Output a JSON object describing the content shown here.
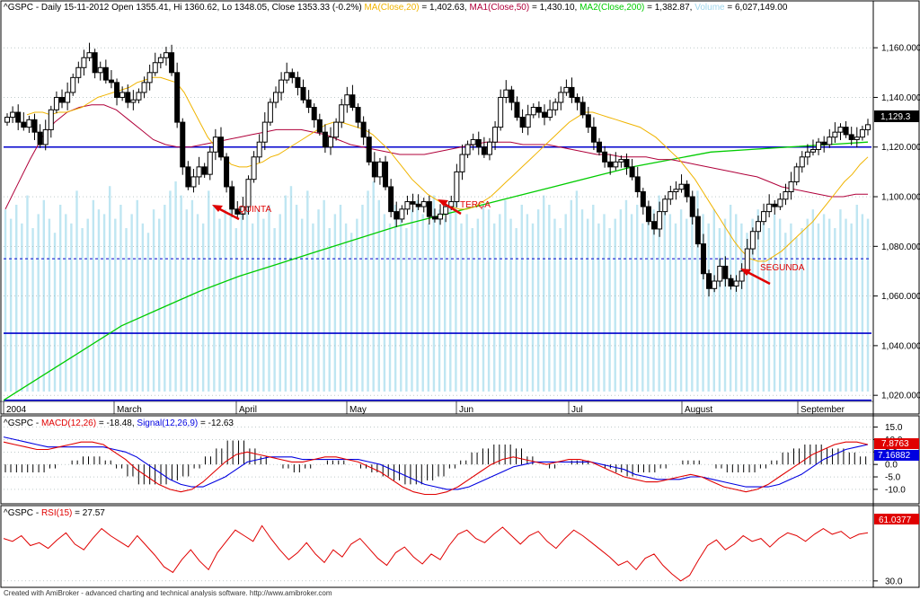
{
  "header": {
    "symbol": "^GSPC",
    "info": "- Daily 15-11-2012 Open 1355.41, Hi 1360.62, Lo 1348.05, Close 1353.33 (-0.2%)",
    "ma_label": "MA(Close,20)",
    "ma_value": "= 1,402.63,",
    "ma1_label": "MA1(Close,50)",
    "ma1_value": "= 1,430.10,",
    "ma2_label": "MA2(Close,200)",
    "ma2_value": "= 1,382.87,",
    "volume_label": "Volume",
    "volume_value": "= 6,027,149.00"
  },
  "macd_header": {
    "symbol": "^GSPC",
    "macd_label": "MACD(12,26)",
    "macd_value": "= -18.48,",
    "signal_label": "Signal(12,26,9)",
    "signal_value": "= -12.63"
  },
  "rsi_header": {
    "symbol": "^GSPC",
    "rsi_label": "RSI(15)",
    "rsi_value": "= 27.57"
  },
  "annotations": [
    {
      "text": "QUINTA"
    },
    {
      "text": "TERÇA"
    },
    {
      "text": "SEGUNDA"
    }
  ],
  "last_price_tag": "1,129.3",
  "macd_tags": {
    "macd": "7.8763",
    "signal": "7.16882"
  },
  "rsi_tag": "61.0377",
  "credit": "Created with AmiBroker - advanced charting and technical analysis software. http://www.amibroker.com",
  "colors": {
    "price_axis_line": "#0000cc",
    "ma20": "#f0b400",
    "ma50": "#b0003a",
    "ma200": "#00cc00",
    "volume": "#bfe6f2",
    "macd": "#e00000",
    "signal": "#0000e0",
    "rsi": "#e00000",
    "annotation": "#e00000"
  },
  "chart_data": [
    {
      "type": "candlestick",
      "title": "^GSPC - Daily",
      "x_labels": [
        "2004",
        "March",
        "April",
        "May",
        "Jun",
        "Jul",
        "August",
        "September"
      ],
      "y_ticks": [
        1020,
        1040,
        1060,
        1080,
        1100,
        1120,
        1140,
        1160
      ],
      "ylim": [
        1015,
        1172
      ],
      "horizontal_lines": [
        {
          "value": 1120,
          "style": "solid"
        },
        {
          "value": 1075,
          "style": "dashed"
        },
        {
          "value": 1045,
          "style": "solid"
        },
        {
          "value": 1018,
          "style": "solid"
        }
      ],
      "close_series": [
        1132,
        1134,
        1130,
        1128,
        1131,
        1126,
        1121,
        1127,
        1135,
        1140,
        1138,
        1142,
        1148,
        1152,
        1156,
        1158,
        1150,
        1152,
        1147,
        1146,
        1140,
        1142,
        1138,
        1139,
        1142,
        1146,
        1150,
        1154,
        1156,
        1158,
        1150,
        1130,
        1112,
        1104,
        1108,
        1112,
        1109,
        1118,
        1124,
        1116,
        1104,
        1095,
        1093,
        1096,
        1107,
        1116,
        1122,
        1130,
        1138,
        1142,
        1147,
        1150,
        1148,
        1144,
        1139,
        1136,
        1131,
        1126,
        1120,
        1124,
        1130,
        1137,
        1141,
        1136,
        1130,
        1124,
        1114,
        1108,
        1114,
        1104,
        1094,
        1091,
        1095,
        1098,
        1097,
        1096,
        1098,
        1092,
        1091,
        1093,
        1096,
        1098,
        1110,
        1117,
        1121,
        1123,
        1120,
        1117,
        1122,
        1128,
        1140,
        1143,
        1138,
        1132,
        1128,
        1133,
        1136,
        1134,
        1132,
        1135,
        1138,
        1142,
        1144,
        1140,
        1138,
        1133,
        1128,
        1122,
        1118,
        1114,
        1112,
        1114,
        1115,
        1112,
        1108,
        1102,
        1096,
        1090,
        1087,
        1094,
        1099,
        1102,
        1103,
        1105,
        1100,
        1092,
        1081,
        1069,
        1063,
        1066,
        1072,
        1067,
        1064,
        1066,
        1070,
        1079,
        1086,
        1090,
        1094,
        1097,
        1096,
        1099,
        1102,
        1106,
        1112,
        1116,
        1118,
        1119,
        1122,
        1121,
        1124,
        1126,
        1128,
        1125,
        1123,
        1124,
        1127,
        1129
      ],
      "ma20_series": [
        1133,
        1134,
        1134,
        1133,
        1134,
        1134,
        1135,
        1136,
        1138,
        1140,
        1141,
        1142,
        1143,
        1144,
        1146,
        1147,
        1148,
        1148,
        1147,
        1146,
        1142,
        1136,
        1130,
        1124,
        1120,
        1116,
        1113,
        1112,
        1112,
        1113,
        1114,
        1116,
        1117,
        1119,
        1121,
        1123,
        1125,
        1127,
        1129,
        1130,
        1130,
        1129,
        1128,
        1127,
        1125,
        1122,
        1119,
        1115,
        1111,
        1107,
        1104,
        1101,
        1099,
        1097,
        1096,
        1095,
        1095,
        1096,
        1098,
        1100,
        1103,
        1106,
        1109,
        1112,
        1115,
        1118,
        1121,
        1124,
        1127,
        1130,
        1132,
        1134,
        1134,
        1133,
        1132,
        1131,
        1130,
        1129,
        1128,
        1126,
        1124,
        1121,
        1118,
        1115,
        1111,
        1107,
        1102,
        1097,
        1092,
        1087,
        1082,
        1078,
        1075,
        1074,
        1074,
        1076,
        1078,
        1081,
        1084,
        1087,
        1090,
        1094,
        1098,
        1102,
        1106,
        1109,
        1113,
        1116
      ],
      "ma50_series": [
        1095,
        1105,
        1115,
        1124,
        1130,
        1134,
        1136,
        1137,
        1137,
        1135,
        1131,
        1127,
        1123,
        1121,
        1120,
        1120,
        1121,
        1122,
        1123,
        1124,
        1125,
        1126,
        1127,
        1127,
        1127,
        1126,
        1125,
        1123,
        1121,
        1120,
        1119,
        1118,
        1117,
        1117,
        1117,
        1118,
        1119,
        1120,
        1121,
        1122,
        1122,
        1122,
        1121,
        1121,
        1121,
        1120,
        1119,
        1118,
        1117,
        1117,
        1116,
        1116,
        1116,
        1115,
        1115,
        1114,
        1113,
        1112,
        1111,
        1110,
        1109,
        1108,
        1106,
        1104,
        1103,
        1102,
        1101,
        1100,
        1100,
        1101,
        1101
      ],
      "ma200_series": [
        1018,
        1028,
        1038,
        1048,
        1055,
        1062,
        1068,
        1073,
        1078,
        1083,
        1088,
        1092,
        1096,
        1100,
        1104,
        1108,
        1112,
        1115,
        1118,
        1119,
        1120,
        1121,
        1122
      ],
      "volume_relative": [
        0.78,
        0.74,
        0.8,
        0.72,
        0.84,
        0.7,
        0.76,
        0.82,
        0.74,
        0.68,
        0.8,
        0.76,
        0.72,
        0.86,
        0.7,
        0.74,
        0.82,
        0.78,
        0.76,
        0.88,
        0.74,
        0.8,
        0.7,
        0.76,
        0.82,
        0.72,
        0.68,
        0.78,
        0.74,
        0.8,
        0.86,
        0.9,
        0.84,
        0.78,
        0.82,
        0.76,
        0.72,
        0.86,
        0.8,
        0.74,
        0.78,
        0.84,
        0.7,
        0.76,
        0.82,
        0.72,
        0.78,
        0.74,
        0.8,
        0.7,
        0.76,
        0.84,
        0.88,
        0.8,
        0.74,
        0.86,
        0.72,
        0.78,
        0.82,
        0.7,
        0.76,
        0.8,
        0.72,
        0.68,
        0.74,
        0.8,
        0.86,
        0.9,
        0.82,
        0.76,
        0.72,
        0.8,
        0.74,
        0.7,
        0.78,
        0.82,
        0.76,
        0.72,
        0.84,
        0.78,
        0.74,
        0.8,
        0.86,
        0.72,
        0.76,
        0.7,
        0.74,
        0.8,
        0.78,
        0.72,
        0.76,
        0.82,
        0.74,
        0.7,
        0.8,
        0.76,
        0.72,
        0.78,
        0.84,
        0.8,
        0.74,
        0.7,
        0.76,
        0.82,
        0.86,
        0.78,
        0.74,
        0.8,
        0.72,
        0.76,
        0.7,
        0.74,
        0.78,
        0.82,
        0.76,
        0.8,
        0.72,
        0.74,
        0.78,
        0.84,
        0.8,
        0.76,
        0.72,
        0.78,
        0.74,
        0.82,
        0.86,
        0.76,
        0.72,
        0.78,
        0.7,
        0.74,
        0.8,
        0.76,
        0.72,
        0.68,
        0.74,
        0.78,
        0.72,
        0.7,
        0.76,
        0.74,
        0.68,
        0.72,
        0.66,
        0.7,
        0.74,
        0.78,
        0.72,
        0.76,
        0.74,
        0.7,
        0.78,
        0.74,
        0.72,
        0.8,
        0.76,
        0.74
      ]
    },
    {
      "type": "line",
      "title": "MACD(12,26) / Signal(12,26,9)",
      "y_ticks": [
        15,
        10,
        5,
        0,
        -5,
        -10
      ],
      "ylim": [
        -14,
        17
      ],
      "series": [
        {
          "name": "MACD(12,26)",
          "values": [
            9,
            8,
            7,
            6,
            6,
            7,
            8,
            9,
            9,
            8,
            5,
            2,
            -2,
            -5,
            -8,
            -10,
            -11,
            -10,
            -7,
            -3,
            1,
            4,
            5,
            4,
            3,
            2,
            1,
            1,
            2,
            3,
            3,
            2,
            1,
            -1,
            -3,
            -6,
            -9,
            -11,
            -12,
            -12,
            -11,
            -9,
            -6,
            -3,
            0,
            2,
            3,
            2,
            1,
            0,
            1,
            2,
            2,
            1,
            -1,
            -3,
            -5,
            -6,
            -7,
            -7,
            -6,
            -5,
            -4,
            -5,
            -7,
            -9,
            -10,
            -11,
            -10,
            -8,
            -5,
            -2,
            1,
            4,
            6,
            8,
            9,
            9,
            8
          ]
        },
        {
          "name": "Signal(12,26,9)",
          "values": [
            11,
            10,
            9,
            8,
            7,
            7,
            7,
            7,
            7,
            7,
            6,
            5,
            3,
            0,
            -3,
            -6,
            -8,
            -9,
            -9,
            -7,
            -5,
            -2,
            1,
            2,
            3,
            3,
            3,
            2,
            2,
            2,
            2,
            2,
            2,
            1,
            0,
            -2,
            -4,
            -6,
            -8,
            -9,
            -10,
            -10,
            -9,
            -7,
            -5,
            -3,
            -1,
            0,
            1,
            1,
            1,
            1,
            1,
            1,
            0,
            -1,
            -2,
            -4,
            -5,
            -6,
            -6,
            -6,
            -5,
            -5,
            -6,
            -7,
            -8,
            -9,
            -9,
            -9,
            -8,
            -6,
            -4,
            -1,
            2,
            4,
            6,
            7,
            8
          ]
        }
      ]
    },
    {
      "type": "line",
      "title": "RSI(15)",
      "y_ticks": [
        30
      ],
      "ylim": [
        28,
        75
      ],
      "series": [
        {
          "name": "RSI(15)",
          "values": [
            60,
            58,
            62,
            55,
            57,
            53,
            59,
            64,
            56,
            52,
            60,
            67,
            62,
            58,
            54,
            62,
            55,
            48,
            40,
            36,
            45,
            52,
            44,
            38,
            50,
            58,
            66,
            62,
            58,
            69,
            60,
            52,
            45,
            50,
            57,
            49,
            43,
            52,
            47,
            56,
            60,
            53,
            46,
            41,
            50,
            54,
            47,
            42,
            49,
            45,
            55,
            63,
            66,
            60,
            57,
            63,
            68,
            62,
            56,
            62,
            65,
            58,
            53,
            60,
            66,
            62,
            57,
            52,
            47,
            41,
            44,
            38,
            46,
            49,
            41,
            35,
            30,
            34,
            45,
            55,
            59,
            52,
            56,
            62,
            58,
            60,
            54,
            60,
            64,
            62,
            58,
            63,
            67,
            63,
            65,
            60,
            63,
            64
          ]
        }
      ]
    }
  ]
}
